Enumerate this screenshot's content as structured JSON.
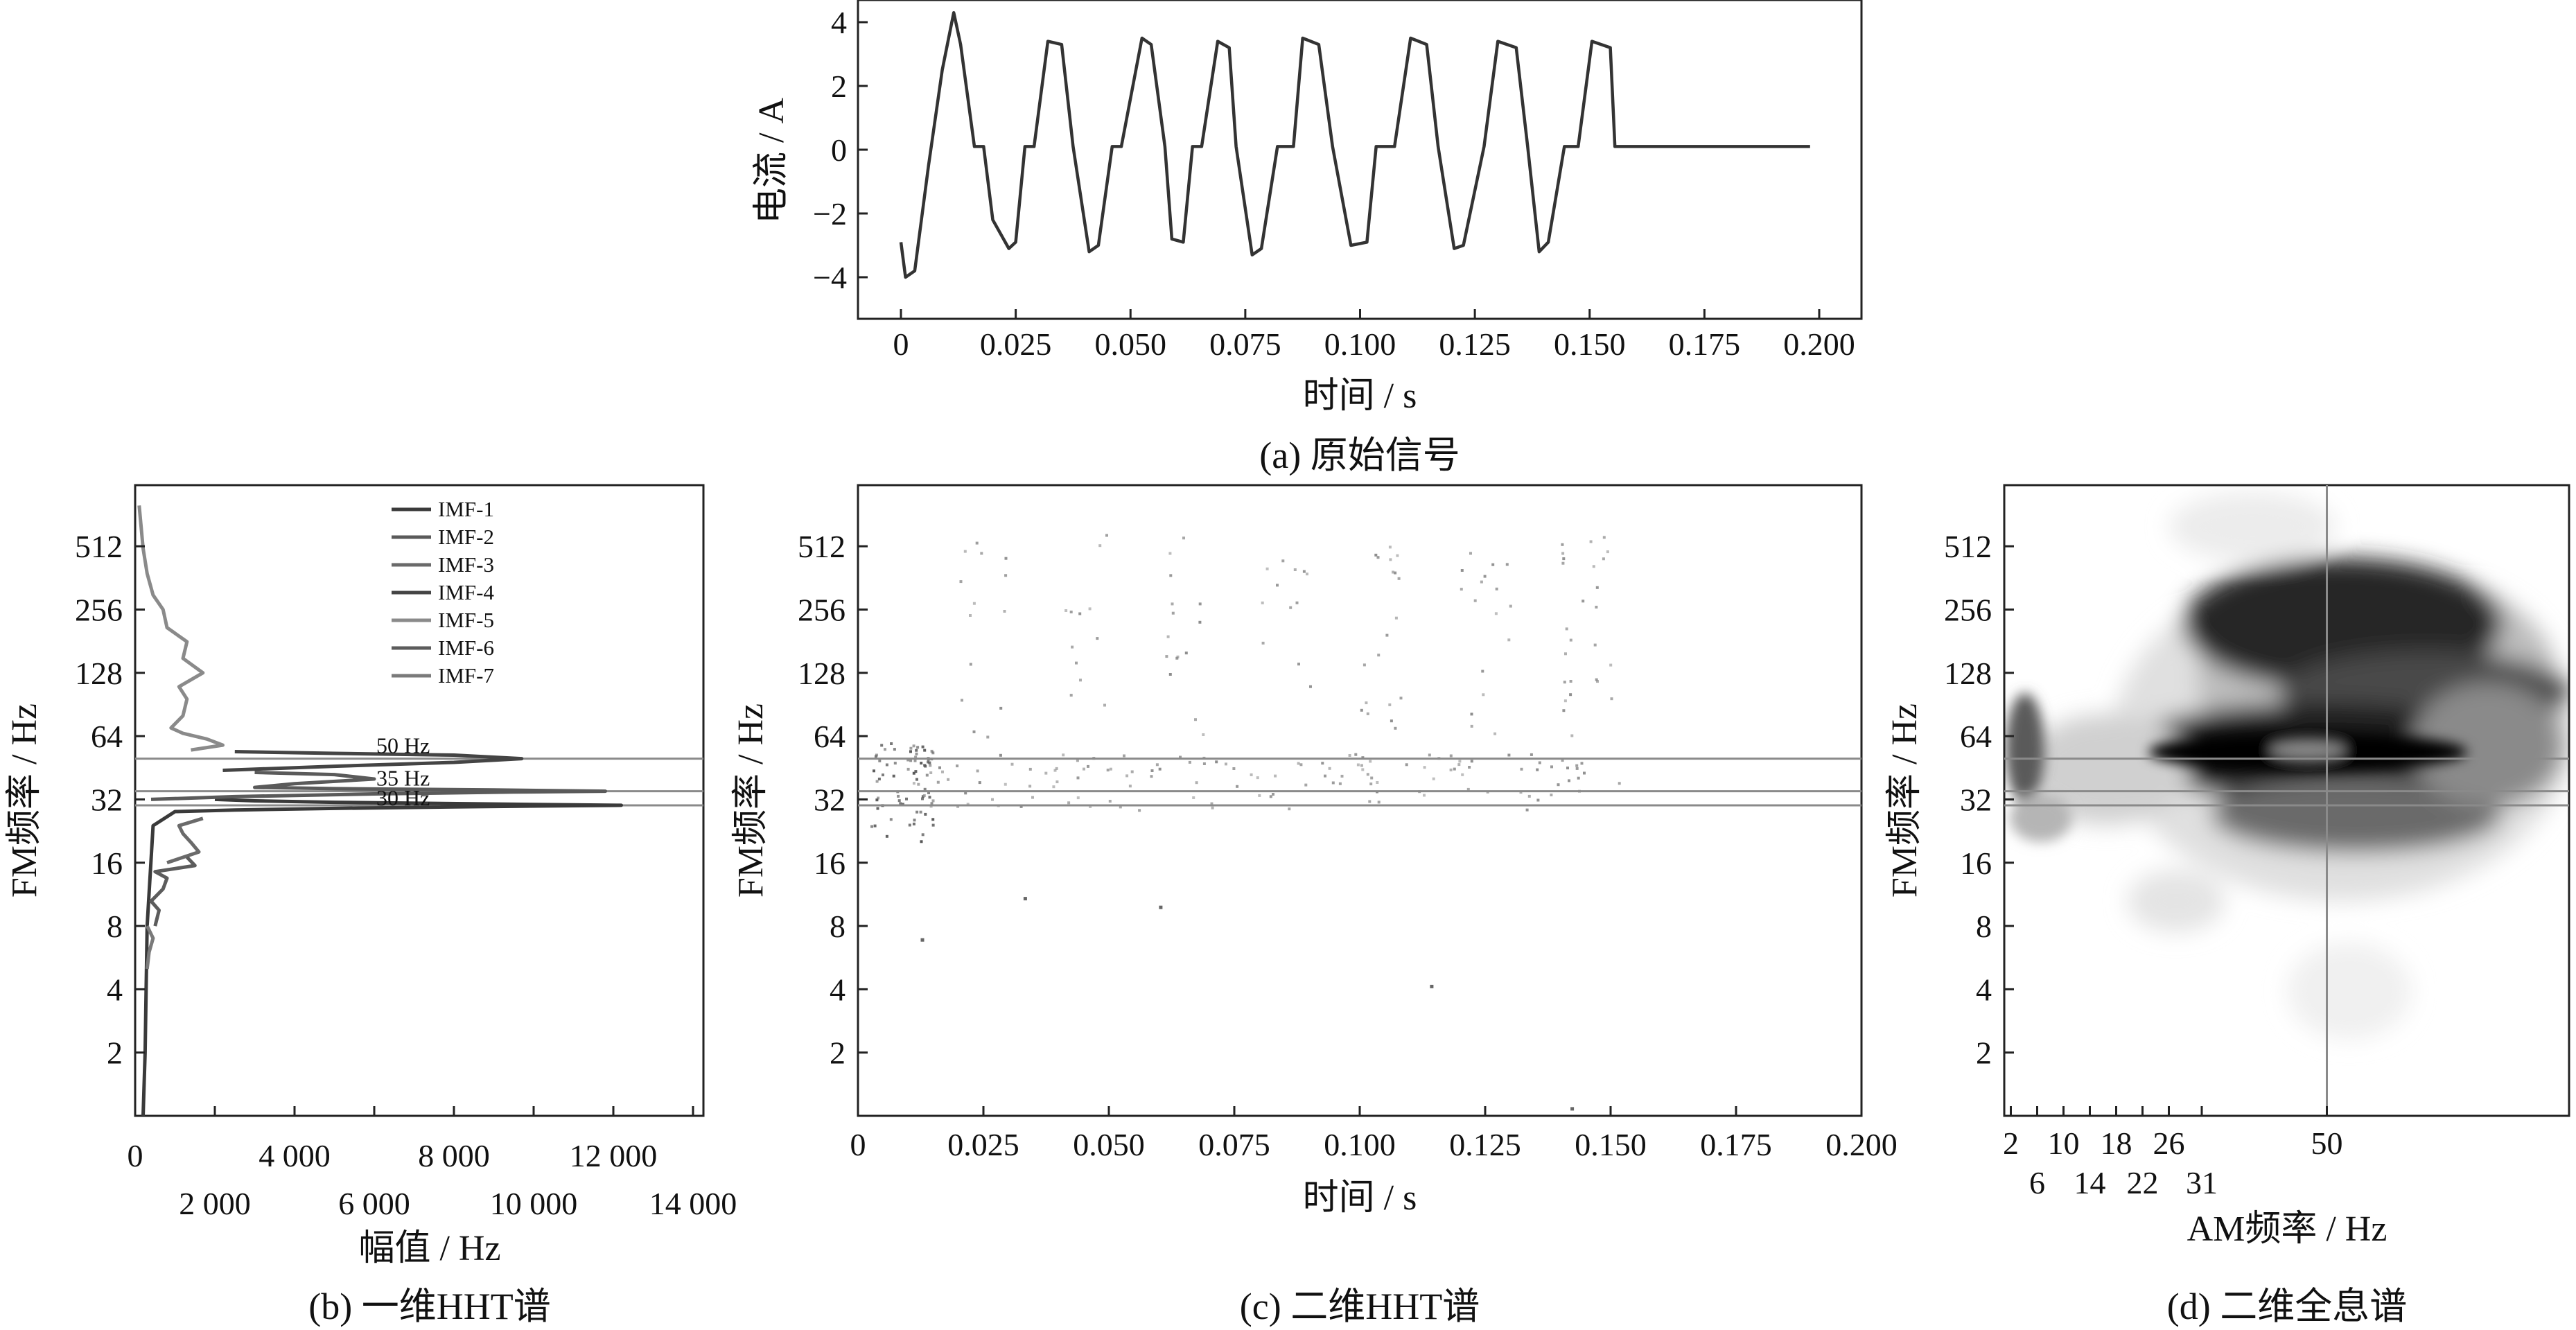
{
  "panels": {
    "a": {
      "caption": "(a) 原始信号",
      "xlabel": "时间 / s",
      "ylabel": "电流 / A",
      "xticks": [
        "0",
        "0.025",
        "0.050",
        "0.075",
        "0.100",
        "0.125",
        "0.150",
        "0.175",
        "0.200"
      ],
      "yticks": [
        "−4",
        "−2",
        "0",
        "2",
        "4"
      ]
    },
    "b": {
      "caption": "(b) 一维HHT谱",
      "xlabel": "幅值 / Hz",
      "ylabel": "FM频率 / Hz",
      "xticks_top": [
        "0",
        "4 000",
        "8 000",
        "12 000"
      ],
      "xticks_bottom": [
        "2 000",
        "6 000",
        "10 000",
        "14 000"
      ],
      "yticks": [
        "2",
        "4",
        "8",
        "16",
        "32",
        "64",
        "128",
        "256",
        "512"
      ],
      "legend": [
        "IMF-1",
        "IMF-2",
        "IMF-3",
        "IMF-4",
        "IMF-5",
        "IMF-6",
        "IMF-7"
      ],
      "annotations": [
        "50 Hz",
        "35 Hz",
        "30 Hz"
      ]
    },
    "c": {
      "caption": "(c) 二维HHT谱",
      "xlabel": "时间 / s",
      "ylabel": "FM频率 / Hz",
      "xticks": [
        "0",
        "0.025",
        "0.050",
        "0.075",
        "0.100",
        "0.125",
        "0.150",
        "0.175",
        "0.200"
      ],
      "yticks": [
        "2",
        "4",
        "8",
        "16",
        "32",
        "64",
        "128",
        "256",
        "512"
      ]
    },
    "d": {
      "caption": "(d) 二维全息谱",
      "xlabel": "AM频率 / Hz",
      "ylabel": "FM频率 / Hz",
      "xticks_top": [
        "2",
        "10",
        "18",
        "26",
        "50"
      ],
      "xticks_bottom": [
        "6",
        "14",
        "22",
        "31"
      ],
      "yticks": [
        "2",
        "4",
        "8",
        "16",
        "32",
        "64",
        "128",
        "256",
        "512"
      ]
    }
  },
  "colors": {
    "line": "#3a3a3a",
    "ref_line": "#8a8a8a",
    "dots": "#8c8c8c"
  },
  "chart_data": [
    {
      "id": "a",
      "type": "line",
      "x_unit": "s",
      "y_unit": "A",
      "xlim": [
        0,
        0.2
      ],
      "ylim": [
        -4.5,
        4.5
      ],
      "series": [
        {
          "x": [
            0,
            0.001,
            0.003,
            0.006,
            0.009,
            0.0115,
            0.013,
            0.016,
            0.018,
            0.02,
            0.0235,
            0.025,
            0.027,
            0.029,
            0.032,
            0.035,
            0.0375,
            0.041,
            0.043,
            0.046,
            0.048,
            0.0525,
            0.0545,
            0.0575,
            0.059,
            0.0615,
            0.0635,
            0.0655,
            0.069,
            0.0715,
            0.073,
            0.0765,
            0.0785,
            0.082,
            0.0855,
            0.0875,
            0.091,
            0.094,
            0.098,
            0.1015,
            0.1035,
            0.1075,
            0.111,
            0.1145,
            0.117,
            0.1205,
            0.1225,
            0.127,
            0.13,
            0.134,
            0.1365,
            0.139,
            0.141,
            0.1445,
            0.1475,
            0.1505,
            0.1545,
            0.1555,
            0.157,
            0.17,
            0.185,
            0.198
          ],
          "y": [
            -2.9,
            -4.0,
            -3.8,
            -0.5,
            2.5,
            4.3,
            3.3,
            0.1,
            0.1,
            -2.2,
            -3.1,
            -2.9,
            0.1,
            0.1,
            3.4,
            3.3,
            0.1,
            -3.2,
            -3.0,
            0.1,
            0.1,
            3.5,
            3.3,
            0.1,
            -2.8,
            -2.9,
            0.1,
            0.1,
            3.4,
            3.2,
            0.1,
            -3.3,
            -3.1,
            0.1,
            0.1,
            3.5,
            3.3,
            0.1,
            -3.0,
            -2.9,
            0.1,
            0.1,
            3.5,
            3.3,
            0.1,
            -3.1,
            -3.0,
            0.1,
            3.4,
            3.2,
            0.1,
            -3.2,
            -2.9,
            0.1,
            0.1,
            3.4,
            3.2,
            0.1,
            0.1,
            0.1,
            0.1,
            0.1
          ]
        }
      ]
    },
    {
      "id": "b",
      "type": "line",
      "x_unit": "Hz",
      "y_scale": "log2",
      "xlim": [
        0,
        14000
      ],
      "ylim": [
        1,
        1000
      ],
      "reference_lines_y": [
        50,
        35,
        30
      ],
      "series": [
        {
          "name": "IMF-1",
          "points": [
            [
              200,
              1.0
            ],
            [
              250,
              2
            ],
            [
              300,
              8
            ],
            [
              450,
              24
            ],
            [
              1000,
              28
            ],
            [
              2500,
              28.5
            ],
            [
              5000,
              29
            ],
            [
              8000,
              29.5
            ],
            [
              12200,
              30
            ],
            [
              8500,
              30.5
            ],
            [
              5000,
              31
            ],
            [
              3000,
              31.5
            ],
            [
              2000,
              32
            ]
          ]
        },
        {
          "name": "IMF-2",
          "points": [
            [
              400,
              32
            ],
            [
              2500,
              33
            ],
            [
              6000,
              34
            ],
            [
              9500,
              34.7
            ],
            [
              11800,
              35
            ],
            [
              9000,
              35.5
            ],
            [
              5000,
              36
            ],
            [
              3000,
              36.5
            ],
            [
              4000,
              38
            ],
            [
              6000,
              40
            ],
            [
              5000,
              42
            ],
            [
              3000,
              43
            ]
          ]
        },
        {
          "name": "IMF-3",
          "points": [
            [
              800,
              16
            ],
            [
              1600,
              18
            ],
            [
              1400,
              20
            ],
            [
              1200,
              22
            ],
            [
              1100,
              24
            ],
            [
              1700,
              26
            ]
          ]
        },
        {
          "name": "IMF-4",
          "points": [
            [
              2200,
              44
            ],
            [
              5000,
              46
            ],
            [
              8000,
              48
            ],
            [
              9700,
              50
            ],
            [
              8000,
              52
            ],
            [
              5000,
              53
            ],
            [
              2500,
              54
            ]
          ]
        },
        {
          "name": "IMF-5",
          "points": [
            [
              1400,
              55
            ],
            [
              2200,
              58
            ],
            [
              1800,
              62
            ],
            [
              1200,
              66
            ],
            [
              900,
              70
            ],
            [
              1200,
              80
            ],
            [
              1300,
              96
            ],
            [
              1100,
              110
            ],
            [
              1700,
              128
            ],
            [
              1200,
              150
            ],
            [
              1300,
              180
            ],
            [
              800,
              210
            ],
            [
              700,
              256
            ],
            [
              450,
              300
            ],
            [
              300,
              380
            ],
            [
              200,
              500
            ],
            [
              100,
              800
            ]
          ]
        },
        {
          "name": "IMF-6",
          "points": [
            [
              500,
              8
            ],
            [
              600,
              9.5
            ],
            [
              400,
              10.5
            ],
            [
              700,
              12
            ],
            [
              800,
              13.5
            ],
            [
              500,
              14.5
            ],
            [
              1500,
              15.5
            ],
            [
              1300,
              17
            ]
          ]
        },
        {
          "name": "IMF-7",
          "points": [
            [
              300,
              5
            ],
            [
              350,
              6
            ],
            [
              450,
              7
            ],
            [
              300,
              8
            ]
          ]
        }
      ]
    },
    {
      "id": "c",
      "type": "scatter",
      "x_unit": "s",
      "y_unit": "Hz",
      "y_scale": "log2",
      "xlim": [
        0,
        0.2
      ],
      "ylim": [
        1,
        1000
      ],
      "reference_lines_y": [
        50,
        35,
        30
      ]
    },
    {
      "id": "d",
      "type": "heatmap",
      "x_unit": "Hz",
      "y_unit": "Hz",
      "y_scale": "log2",
      "ylim": [
        1,
        1000
      ],
      "reference_lines_y": [
        50,
        35,
        30
      ],
      "reference_lines_x": [
        50
      ]
    }
  ]
}
